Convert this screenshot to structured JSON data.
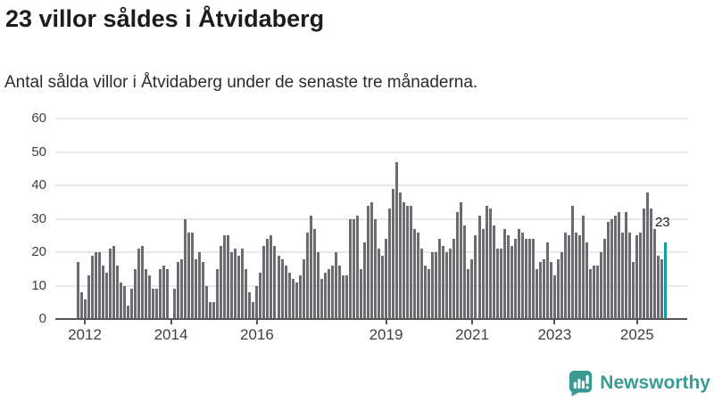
{
  "header": {
    "title": "23 villor såldes i Åtvidaberg",
    "subtitle": "Antal sålda villor i Åtvidaberg under de senaste tre månaderna."
  },
  "chart_data": {
    "type": "bar",
    "title": "23 villor såldes i Åtvidaberg",
    "subtitle": "Antal sålda villor i Åtvidaberg under de senaste tre månaderna.",
    "ylabel": "",
    "xlabel": "",
    "ylim": [
      0,
      60
    ],
    "y_ticks": [
      0,
      10,
      20,
      30,
      40,
      50,
      60
    ],
    "grid": "horizontal",
    "x_ticks": [
      {
        "label": "2012",
        "index": 2
      },
      {
        "label": "2014",
        "index": 26
      },
      {
        "label": "2016",
        "index": 50
      },
      {
        "label": "2019",
        "index": 86
      },
      {
        "label": "2021",
        "index": 110
      },
      {
        "label": "2023",
        "index": 133
      },
      {
        "label": "2025",
        "index": 156
      }
    ],
    "values": [
      17,
      8,
      6,
      13,
      19,
      20,
      20,
      16,
      14,
      21,
      22,
      16,
      11,
      10,
      4,
      9,
      15,
      21,
      22,
      15,
      13,
      9,
      9,
      15,
      16,
      15,
      0,
      9,
      17,
      18,
      30,
      26,
      26,
      18,
      20,
      17,
      10,
      5,
      5,
      15,
      22,
      25,
      25,
      20,
      21,
      19,
      21,
      15,
      8,
      5,
      10,
      14,
      22,
      24,
      25,
      22,
      19,
      18,
      16,
      14,
      12,
      11,
      13,
      18,
      26,
      31,
      27,
      20,
      12,
      14,
      15,
      16,
      20,
      16,
      13,
      13,
      30,
      30,
      31,
      15,
      23,
      34,
      35,
      30,
      21,
      19,
      24,
      33,
      39,
      47,
      38,
      35,
      34,
      34,
      27,
      26,
      21,
      16,
      15,
      20,
      20,
      24,
      22,
      20,
      21,
      24,
      32,
      35,
      28,
      15,
      18,
      25,
      31,
      27,
      34,
      33,
      28,
      21,
      21,
      27,
      25,
      22,
      24,
      27,
      26,
      24,
      24,
      24,
      15,
      17,
      18,
      23,
      17,
      13,
      18,
      20,
      26,
      25,
      34,
      26,
      25,
      31,
      23,
      15,
      16,
      16,
      20,
      24,
      29,
      30,
      31,
      32,
      26,
      32,
      26,
      17,
      25,
      26,
      33,
      38,
      33,
      27,
      19,
      18,
      23
    ],
    "highlight": {
      "index": 164,
      "value": 23,
      "label": "23"
    },
    "bar_color": "#6c6c70",
    "highlight_color": "#14a0a0",
    "axis_color": "#565659",
    "grid_color": "#e8e8e8"
  },
  "footer": {
    "brand": "Newsworthy",
    "brand_color": "#3a9b94"
  }
}
